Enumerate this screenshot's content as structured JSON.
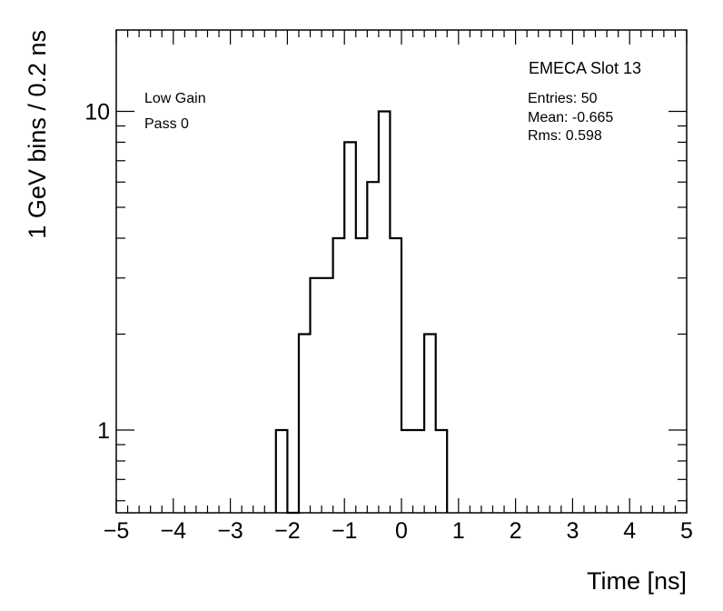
{
  "chart_data": {
    "type": "histogram",
    "title": "EMECA Slot 13",
    "xlabel": "Time [ns]",
    "ylabel": "1 GeV bins / 0.2 ns",
    "xlim": [
      -5,
      5
    ],
    "ylim": [
      0.55,
      18
    ],
    "yscale": "log",
    "bin_width": 0.2,
    "x_ticks": [
      -5,
      -4,
      -3,
      -2,
      -1,
      0,
      1,
      2,
      3,
      4,
      5
    ],
    "x_tick_labels": [
      "−5",
      "−4",
      "−3",
      "−2",
      "−1",
      "0",
      "1",
      "2",
      "3",
      "4",
      "5"
    ],
    "y_ticks": [
      1,
      10
    ],
    "y_tick_labels": [
      "1",
      "10"
    ],
    "bins": [
      {
        "x0": -2.2,
        "x1": -2.0,
        "value": 1
      },
      {
        "x0": -2.0,
        "x1": -1.8,
        "value": 0
      },
      {
        "x0": -1.8,
        "x1": -1.6,
        "value": 2
      },
      {
        "x0": -1.6,
        "x1": -1.4,
        "value": 3
      },
      {
        "x0": -1.4,
        "x1": -1.2,
        "value": 3
      },
      {
        "x0": -1.2,
        "x1": -1.0,
        "value": 4
      },
      {
        "x0": -1.0,
        "x1": -0.8,
        "value": 8
      },
      {
        "x0": -0.8,
        "x1": -0.6,
        "value": 4
      },
      {
        "x0": -0.6,
        "x1": -0.4,
        "value": 6
      },
      {
        "x0": -0.4,
        "x1": -0.2,
        "value": 10
      },
      {
        "x0": -0.2,
        "x1": 0.0,
        "value": 4
      },
      {
        "x0": 0.0,
        "x1": 0.2,
        "value": 1
      },
      {
        "x0": 0.2,
        "x1": 0.4,
        "value": 1
      },
      {
        "x0": 0.4,
        "x1": 0.6,
        "value": 2
      },
      {
        "x0": 0.6,
        "x1": 0.8,
        "value": 1
      }
    ],
    "labels": {
      "gain": "Low Gain",
      "pass": "Pass 0"
    },
    "stats": {
      "entries": "Entries: 50",
      "mean": "Mean: -0.665",
      "rms": "Rms: 0.598"
    }
  }
}
